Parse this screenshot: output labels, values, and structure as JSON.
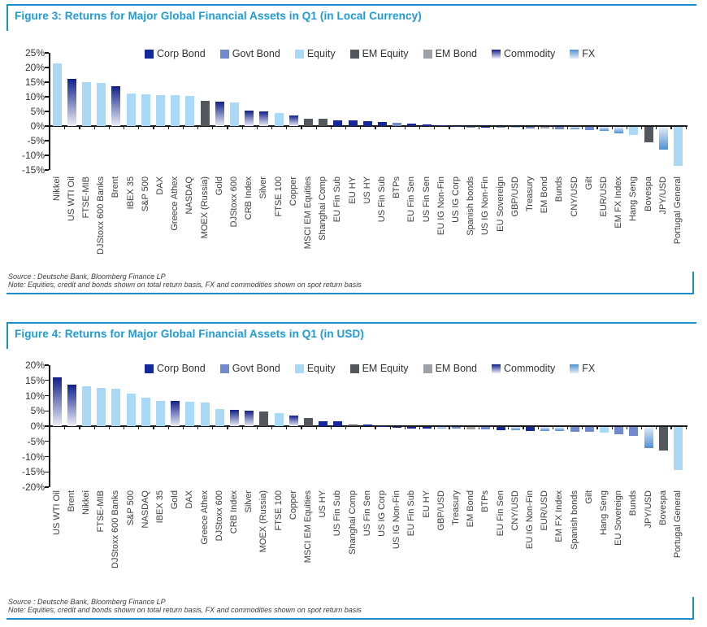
{
  "accent_color": "#1B8FCE",
  "title_color": "#1D9BD7",
  "asset_class_colors": {
    "corp": "#14289C",
    "govt": "#7189CD",
    "equity": "#A9D9F6",
    "em_equity": "#53575E",
    "em_bond": "#9DA2A8",
    "commodity_gradient": [
      "#101F8C",
      "#EDEFF6"
    ],
    "fx_gradient": [
      "#E2EDF8",
      "#4E8FD6"
    ]
  },
  "chart_data": [
    {
      "type": "bar",
      "figure_title": "Figure 3: Returns for Major Global Financial Assets in Q1 (in Local Currency)",
      "title": "",
      "xlabel": "",
      "ylabel": "",
      "ylim": [
        -15,
        25
      ],
      "ytick_step": 5,
      "grid": false,
      "legend_position": "top",
      "legend": [
        {
          "label": "Corp Bond",
          "key": "corp"
        },
        {
          "label": "Govt Bond",
          "key": "govt"
        },
        {
          "label": "Equity",
          "key": "equity"
        },
        {
          "label": "EM Equity",
          "key": "em_equity"
        },
        {
          "label": "EM Bond",
          "key": "em_bond"
        },
        {
          "label": "Commodity",
          "key": "commodity"
        },
        {
          "label": "FX",
          "key": "fx"
        }
      ],
      "categories": [
        "Nikkei",
        "US WTI Oil",
        "FTSE-MIB",
        "DJStoxx 600 Banks",
        "Brent",
        "IBEX 35",
        "S&P 500",
        "DAX",
        "Greece Athex",
        "NASDAQ",
        "MOEX (Russia)",
        "Gold",
        "DJStoxx 600",
        "CRB Index",
        "Silver",
        "FTSE 100",
        "Copper",
        "MSCI EM Equities",
        "Shanghai Comp",
        "EU Fin Sub",
        "EU HY",
        "US HY",
        "US Fin Sub",
        "BTPs",
        "EU Fin Sen",
        "US Fin Sen",
        "EU IG Non-Fin",
        "US IG Corp",
        "Spanish bonds",
        "US IG Non-Fin",
        "EU Sovereign",
        "GBP/USD",
        "Treasury",
        "EM Bond",
        "Bunds",
        "CNY/USD",
        "Gilt",
        "EUR/USD",
        "EM FX Index",
        "Hang Seng",
        "Bovespa",
        "JPY/USD",
        "Portugal General"
      ],
      "values": [
        21.5,
        16.1,
        15.1,
        14.8,
        13.7,
        11.0,
        10.7,
        10.6,
        10.5,
        10.3,
        8.6,
        8.2,
        8.0,
        5.3,
        5.0,
        4.4,
        3.5,
        2.6,
        2.4,
        1.9,
        1.9,
        1.6,
        1.5,
        1.0,
        0.9,
        0.5,
        0.3,
        0.1,
        -0.1,
        -0.3,
        -0.4,
        -0.4,
        -0.5,
        -0.6,
        -0.8,
        -0.9,
        -1.2,
        -1.4,
        -2.2,
        -2.9,
        -5.2,
        -7.9,
        -13.2
      ],
      "classes": [
        "equity",
        "commodity",
        "equity",
        "equity",
        "commodity",
        "equity",
        "equity",
        "equity",
        "equity",
        "equity",
        "em_equity",
        "commodity",
        "equity",
        "commodity",
        "commodity",
        "equity",
        "commodity",
        "em_equity",
        "em_equity",
        "corp",
        "corp",
        "corp",
        "corp",
        "govt",
        "corp",
        "corp",
        "corp",
        "corp",
        "govt",
        "corp",
        "govt",
        "fx",
        "govt",
        "em_bond",
        "govt",
        "fx",
        "govt",
        "fx",
        "fx",
        "equity",
        "em_equity",
        "fx",
        "equity"
      ],
      "source": "Source : Deutsche Bank, Bloomberg Finance LP",
      "note": "Note: Equities, credit and bonds shown on total return basis, FX and commodities shown on spot return basis"
    },
    {
      "type": "bar",
      "figure_title": "Figure 4: Returns for Major Global Financial Assets in Q1 (in USD)",
      "title": "",
      "xlabel": "",
      "ylabel": "",
      "ylim": [
        -20,
        20
      ],
      "ytick_step": 5,
      "grid": false,
      "legend_position": "top",
      "legend": [
        {
          "label": "Corp Bond",
          "key": "corp"
        },
        {
          "label": "Govt Bond",
          "key": "govt"
        },
        {
          "label": "Equity",
          "key": "equity"
        },
        {
          "label": "EM Equity",
          "key": "em_equity"
        },
        {
          "label": "EM Bond",
          "key": "em_bond"
        },
        {
          "label": "Commodity",
          "key": "commodity"
        },
        {
          "label": "FX",
          "key": "fx"
        }
      ],
      "categories": [
        "US WTI Oil",
        "Brent",
        "Nikkei",
        "FTSE-MIB",
        "DJStoxx 600 Banks",
        "S&P 500",
        "NASDAQ",
        "IBEX 35",
        "Gold",
        "DAX",
        "Greece Athex",
        "DJStoxx 600",
        "CRB Index",
        "Silver",
        "MOEX (Russia)",
        "FTSE 100",
        "Copper",
        "MSCI EM Equities",
        "US HY",
        "US Fin Sub",
        "Shanghai Comp",
        "US Fin Sen",
        "US IG Corp",
        "US IG Non-Fin",
        "EU Fin Sub",
        "EU HY",
        "GBP/USD",
        "Treasury",
        "EM Bond",
        "BTPs",
        "EU Fin Sen",
        "CNY/USD",
        "EU IG Non-Fin",
        "EUR/USD",
        "EM FX Index",
        "Spanish bonds",
        "Gilt",
        "Hang Seng",
        "EU Sovereign",
        "Bunds",
        "JPY/USD",
        "Bovespa",
        "Portugal General"
      ],
      "values": [
        16.1,
        13.6,
        13.1,
        12.6,
        12.3,
        10.7,
        9.4,
        8.4,
        8.2,
        8.0,
        7.7,
        5.6,
        5.3,
        5.0,
        4.8,
        4.3,
        3.5,
        2.6,
        1.6,
        1.5,
        0.5,
        0.5,
        0.1,
        -0.3,
        -0.4,
        -0.5,
        -0.5,
        -0.6,
        -0.7,
        -0.8,
        -1.0,
        -1.0,
        -1.2,
        -1.3,
        -1.4,
        -1.5,
        -1.6,
        -1.8,
        -2.4,
        -3.0,
        -7.0,
        -7.6,
        -14.0
      ],
      "classes": [
        "commodity",
        "commodity",
        "equity",
        "equity",
        "equity",
        "equity",
        "equity",
        "equity",
        "commodity",
        "equity",
        "equity",
        "equity",
        "commodity",
        "commodity",
        "em_equity",
        "equity",
        "commodity",
        "em_equity",
        "corp",
        "corp",
        "em_equity",
        "corp",
        "corp",
        "corp",
        "corp",
        "corp",
        "fx",
        "govt",
        "em_bond",
        "govt",
        "corp",
        "fx",
        "corp",
        "fx",
        "fx",
        "govt",
        "govt",
        "equity",
        "govt",
        "govt",
        "fx",
        "em_equity",
        "equity"
      ],
      "source": "Source : Deutsche Bank, Bloomberg Finance LP",
      "note": "Note: Equities, credit and bonds shown on total return basis, FX and commodities shown on spot return basis"
    }
  ]
}
